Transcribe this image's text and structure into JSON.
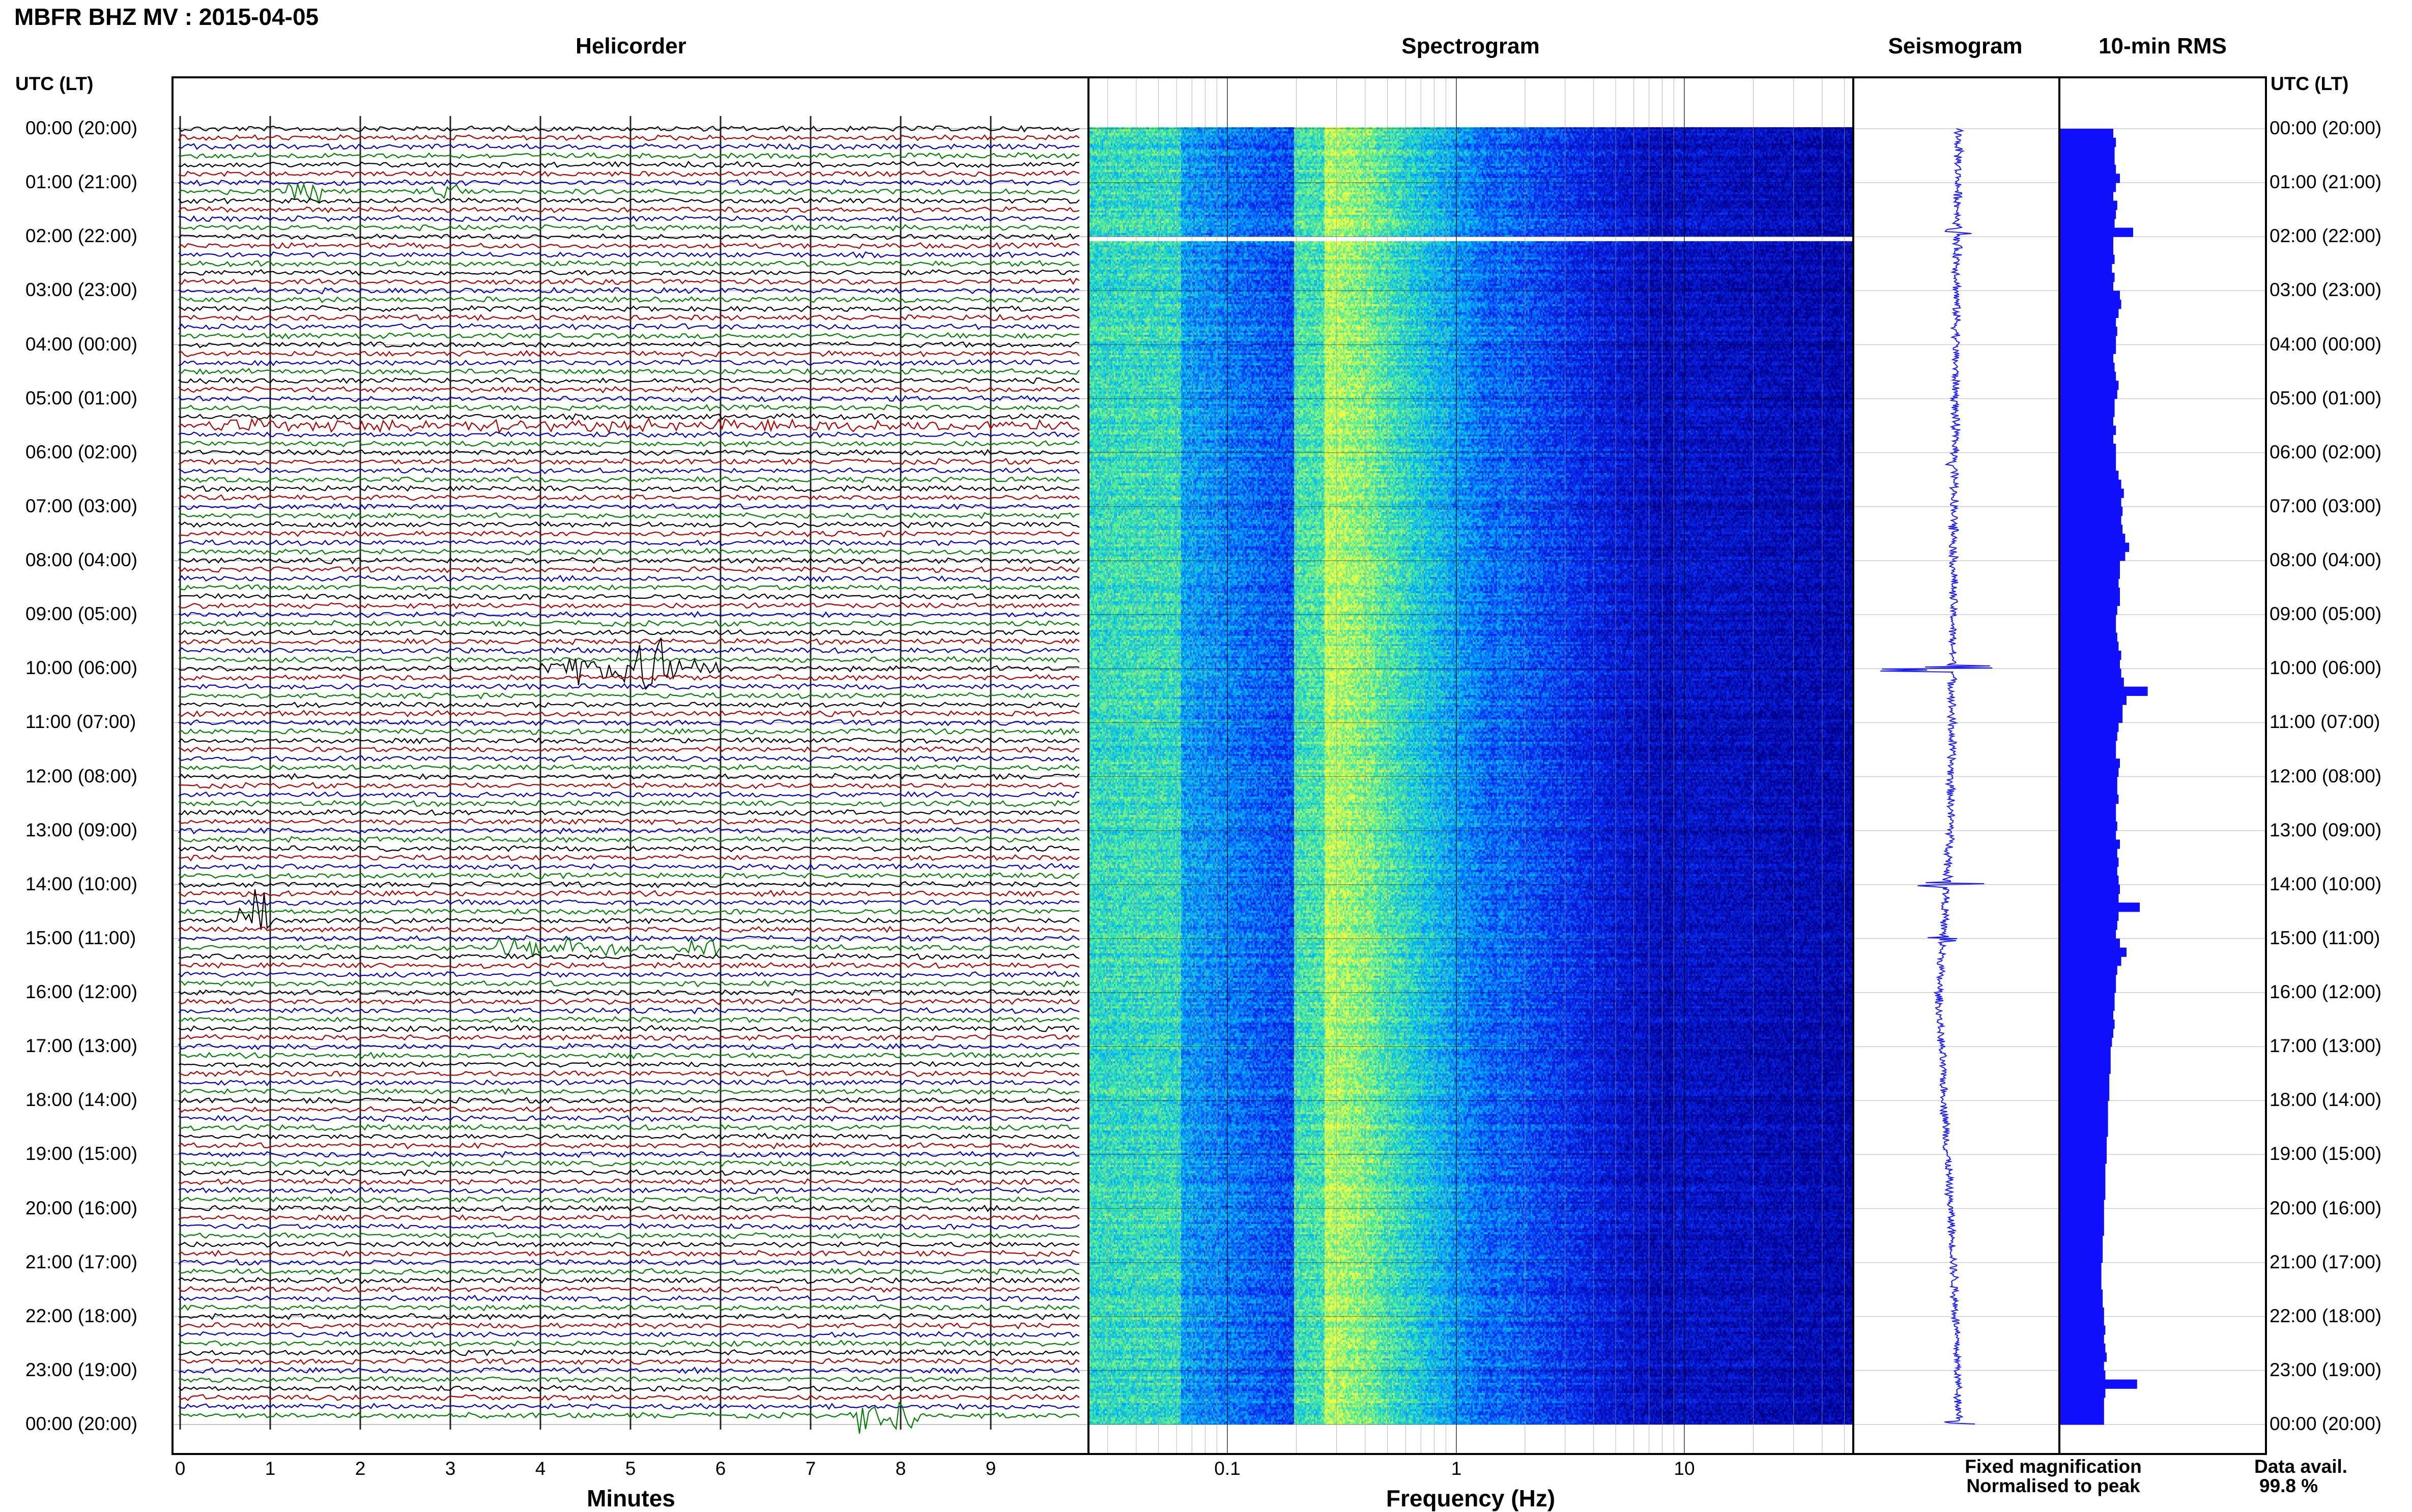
{
  "header": {
    "title": "MBFR BHZ MV : 2015-04-05",
    "timezone_label_left": "UTC (LT)",
    "timezone_label_right": "UTC (LT)"
  },
  "panels": {
    "helicorder": "Helicorder",
    "spectrogram": "Spectrogram",
    "seismogram": "Seismogram",
    "rms": "10-min RMS"
  },
  "time_labels": [
    "00:00 (20:00)",
    "01:00 (21:00)",
    "02:00 (22:00)",
    "03:00 (23:00)",
    "04:00 (00:00)",
    "05:00 (01:00)",
    "06:00 (02:00)",
    "07:00 (03:00)",
    "08:00 (04:00)",
    "09:00 (05:00)",
    "10:00 (06:00)",
    "11:00 (07:00)",
    "12:00 (08:00)",
    "13:00 (09:00)",
    "14:00 (10:00)",
    "15:00 (11:00)",
    "16:00 (12:00)",
    "17:00 (13:00)",
    "18:00 (14:00)",
    "19:00 (15:00)",
    "20:00 (16:00)",
    "21:00 (17:00)",
    "22:00 (18:00)",
    "23:00 (19:00)",
    "00:00 (20:00)"
  ],
  "axes": {
    "minutes_label": "Minutes",
    "minutes_ticks": [
      "0",
      "1",
      "2",
      "3",
      "4",
      "5",
      "6",
      "7",
      "8",
      "9"
    ],
    "frequency_label": "Frequency (Hz)",
    "frequency_ticks": [
      "0.1",
      "1",
      "10"
    ]
  },
  "legend": {
    "fixed": "Fixed magnification",
    "normalised": "Normalised to peak",
    "fixed_color": "#1a1aff",
    "normalised_color": "#ff0000"
  },
  "data_availability": {
    "label": "Data avail.",
    "value": "99.8 %"
  },
  "colors": {
    "trace_cycle": [
      "#000000",
      "#b00000",
      "#0000c0",
      "#008000"
    ],
    "spectrogram_low": "#00008c",
    "spectrogram_high": "#e8ff4a",
    "rms_bar": "#1010ff"
  },
  "chart_data": {
    "type": "bar",
    "title": "10-min RMS",
    "orientation": "horizontal",
    "note_events_utc": [
      "01:10",
      "10:00",
      "14:00",
      "15:00",
      "00:00"
    ],
    "rms_values": [
      0.4,
      0.42,
      0.41,
      0.41,
      0.42,
      0.45,
      0.42,
      0.4,
      0.43,
      0.42,
      0.41,
      0.55,
      0.4,
      0.4,
      0.41,
      0.39,
      0.41,
      0.4,
      0.45,
      0.46,
      0.44,
      0.42,
      0.43,
      0.42,
      0.42,
      0.4,
      0.41,
      0.42,
      0.44,
      0.43,
      0.41,
      0.41,
      0.4,
      0.42,
      0.4,
      0.42,
      0.42,
      0.42,
      0.44,
      0.46,
      0.48,
      0.46,
      0.47,
      0.46,
      0.47,
      0.49,
      0.52,
      0.49,
      0.45,
      0.45,
      0.44,
      0.45,
      0.45,
      0.43,
      0.42,
      0.42,
      0.43,
      0.44,
      0.46,
      0.45,
      0.46,
      0.48,
      0.66,
      0.5,
      0.47,
      0.47,
      0.44,
      0.43,
      0.42,
      0.42,
      0.45,
      0.44,
      0.43,
      0.43,
      0.44,
      0.42,
      0.42,
      0.43,
      0.42,
      0.45,
      0.43,
      0.44,
      0.43,
      0.44,
      0.45,
      0.44,
      0.6,
      0.44,
      0.43,
      0.42,
      0.45,
      0.5,
      0.46,
      0.43,
      0.42,
      0.42,
      0.41,
      0.41,
      0.4,
      0.41,
      0.4,
      0.39,
      0.38,
      0.38,
      0.38,
      0.37,
      0.37,
      0.37,
      0.36,
      0.36,
      0.36,
      0.36,
      0.35,
      0.35,
      0.35,
      0.34,
      0.34,
      0.34,
      0.34,
      0.33,
      0.33,
      0.33,
      0.33,
      0.32,
      0.32,
      0.32,
      0.31,
      0.31,
      0.31,
      0.32,
      0.32,
      0.33,
      0.33,
      0.34,
      0.33,
      0.34,
      0.35,
      0.33,
      0.34,
      0.58,
      0.34,
      0.33,
      0.33,
      0.33
    ]
  }
}
